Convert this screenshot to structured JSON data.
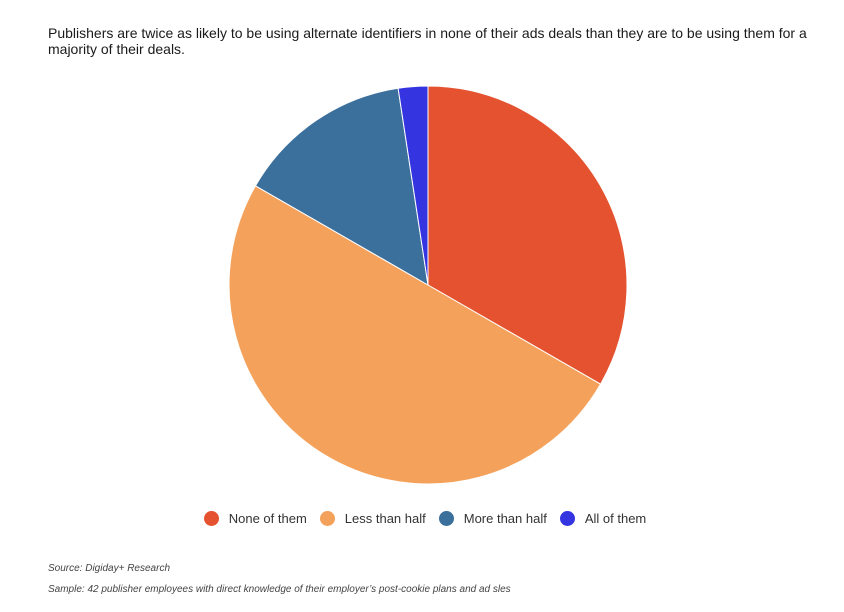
{
  "title": "Publishers are twice as likely to be using alternate identifiers in none of their ads deals than they are to be using them for a majority of their deals.",
  "chart_data": {
    "type": "pie",
    "title": "Publishers are twice as likely to be using alternate identifiers in none of their ads deals than they are to be using them for a majority of their deals.",
    "categories": [
      "None of them",
      "Less than half",
      "More than half",
      "All of them"
    ],
    "values": [
      33.3,
      50.0,
      14.3,
      2.4
    ],
    "colors": [
      "#e4522f",
      "#f4a25b",
      "#3b6f9c",
      "#3434e0"
    ],
    "legend_position": "bottom"
  },
  "footer": {
    "source": "Source: Digiday+ Research",
    "sample": "Sample: 42 publisher employees with direct knowledge of their employer’s post-cookie plans and ad sles"
  }
}
